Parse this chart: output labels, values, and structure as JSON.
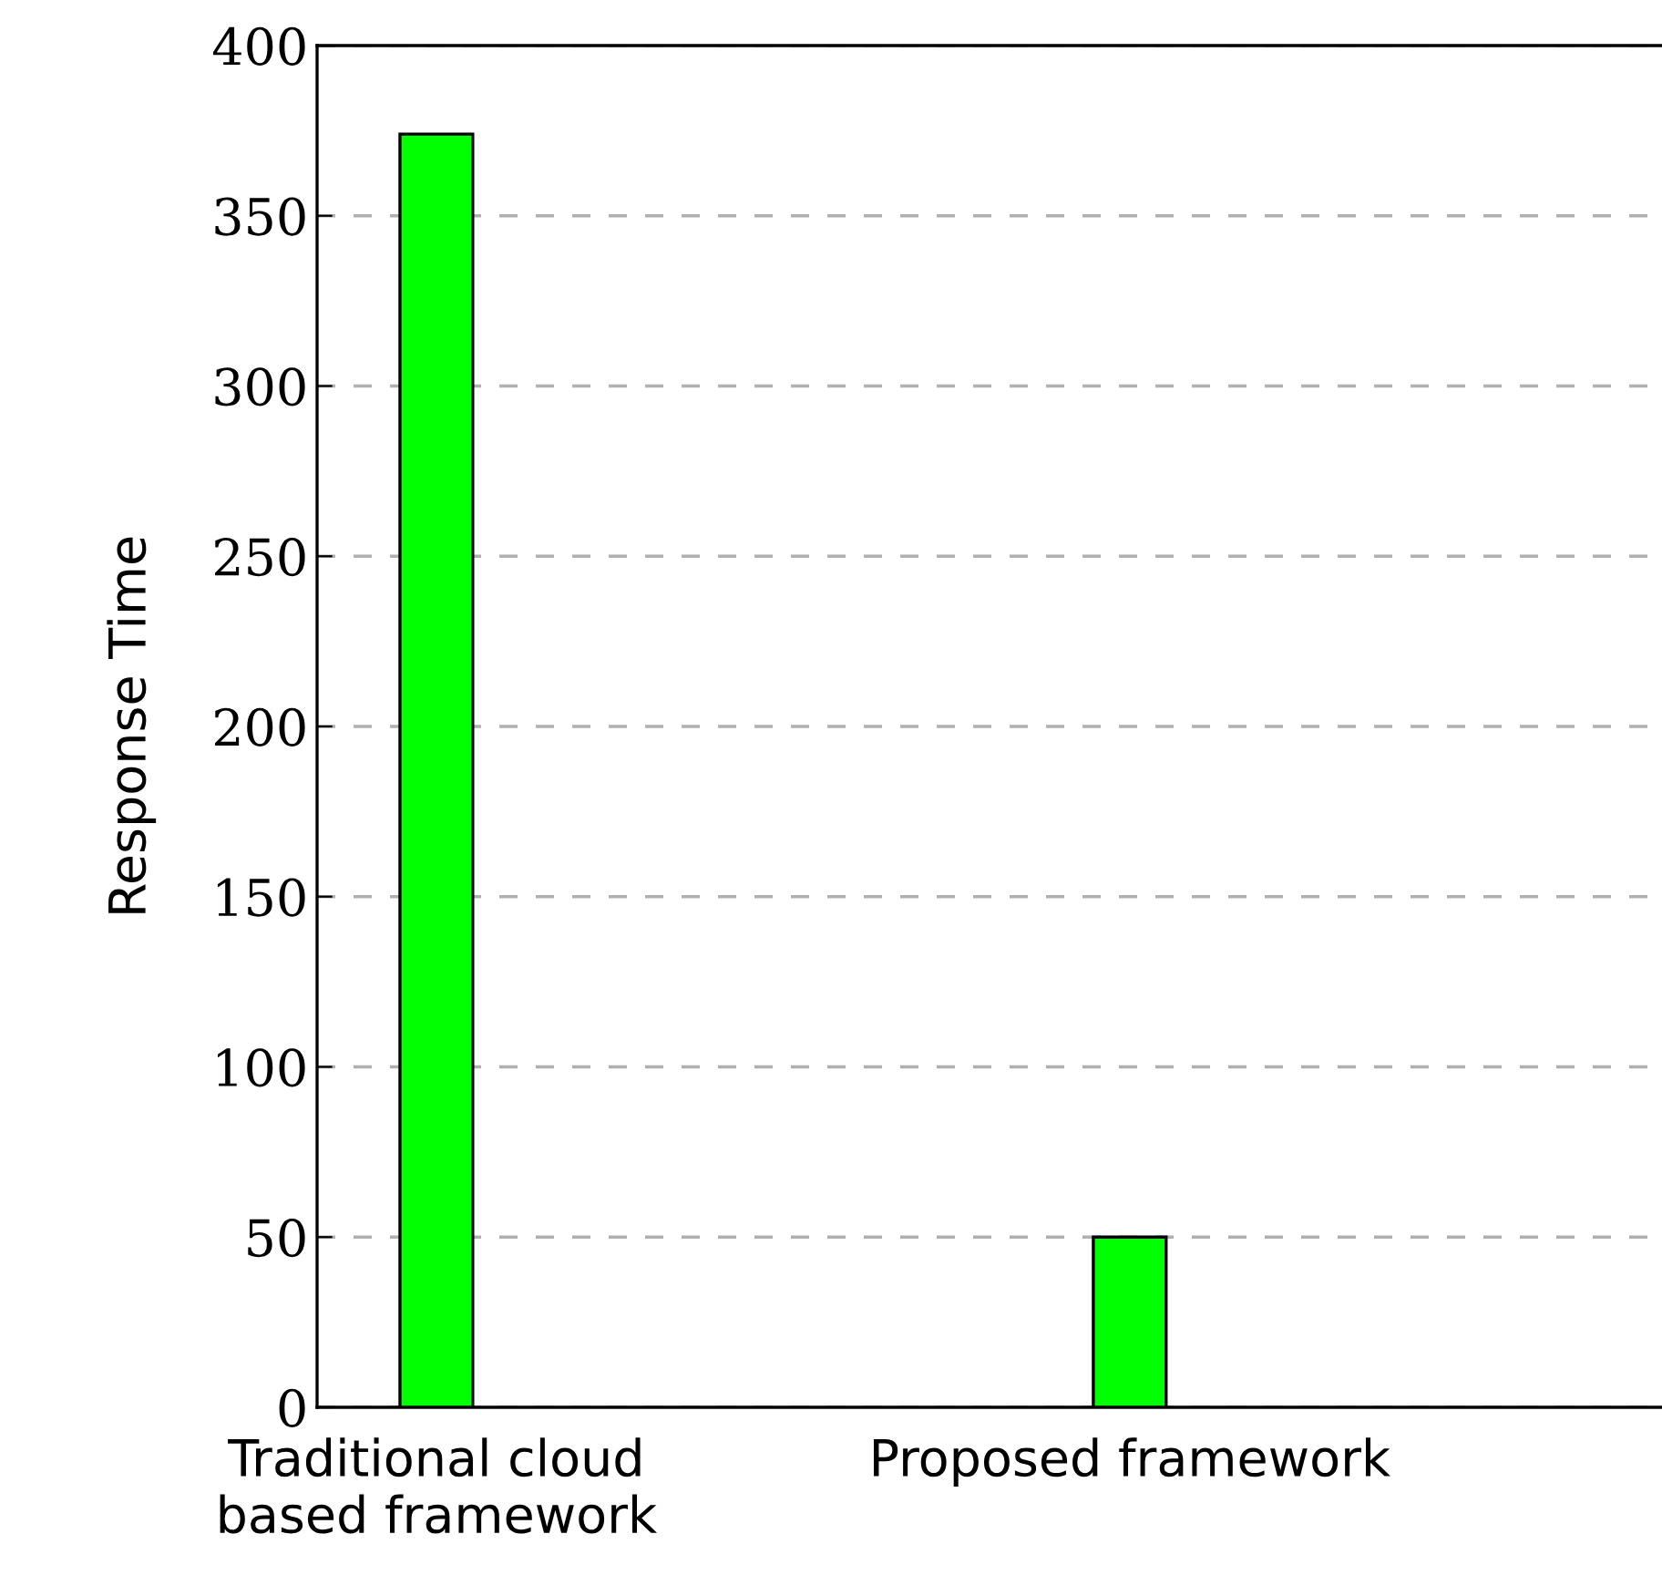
{
  "chart_data": {
    "type": "bar",
    "ylabel": "Response Time",
    "categories": [
      "Traditional cloud\nbased framework",
      "Proposed framework"
    ],
    "values": [
      374,
      50
    ],
    "color": "#00ff00",
    "ylim": [
      0,
      400
    ],
    "yticks": [
      0,
      50,
      100,
      150,
      200,
      250,
      300,
      350,
      400
    ],
    "grid": "y"
  }
}
